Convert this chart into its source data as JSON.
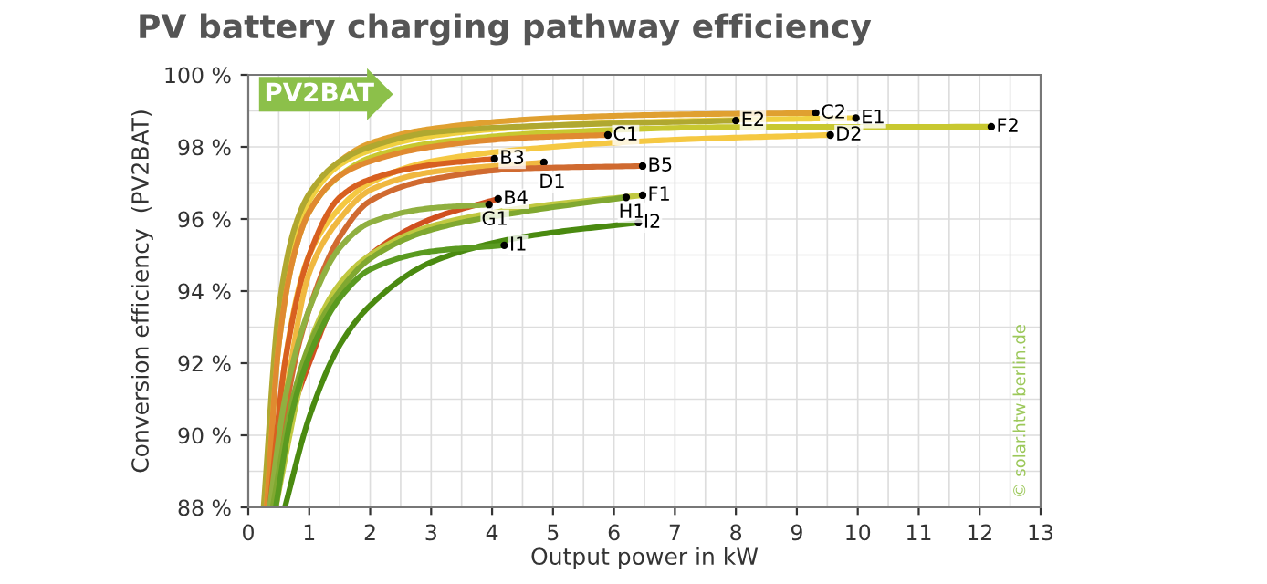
{
  "chart_data": {
    "type": "line",
    "title": "PV battery charging pathway efficiency",
    "xlabel": "Output power in kW",
    "ylabel": "Conversion efficiency  (PV2BAT)",
    "xlim": [
      0,
      13
    ],
    "xticks": [
      0,
      1,
      2,
      3,
      4,
      5,
      6,
      7,
      8,
      9,
      10,
      11,
      12,
      13
    ],
    "ylim": [
      88,
      100
    ],
    "yticks": [
      {
        "value": 88,
        "label": "88 %"
      },
      {
        "value": 90,
        "label": "90 %"
      },
      {
        "value": 92,
        "label": "92 %"
      },
      {
        "value": 94,
        "label": "94 %"
      },
      {
        "value": 96,
        "label": "96 %"
      },
      {
        "value": 98,
        "label": "98 %"
      },
      {
        "value": 100,
        "label": "100 %"
      }
    ],
    "grid": true,
    "legend": false,
    "annotations": [
      "PV2BAT",
      "© solar.htw-berlin.de"
    ],
    "series": [
      {
        "name": "C2",
        "color": "#e0a030",
        "x": [
          0.3,
          0.5,
          0.75,
          1,
          1.5,
          2,
          3,
          5,
          7,
          9.31
        ],
        "values": [
          88,
          93,
          95.5,
          96.6,
          97.6,
          98.1,
          98.5,
          98.8,
          98.9,
          98.94
        ]
      },
      {
        "name": "E1",
        "color": "#f0d040",
        "x": [
          0.3,
          0.5,
          0.75,
          1,
          1.5,
          2,
          3,
          5,
          8,
          9.97
        ],
        "values": [
          88,
          93,
          95.3,
          96.5,
          97.5,
          97.9,
          98.3,
          98.6,
          98.75,
          98.8
        ]
      },
      {
        "name": "E2",
        "color": "#b0a830",
        "x": [
          0.25,
          0.5,
          0.75,
          1,
          1.5,
          2,
          3,
          5,
          8.0
        ],
        "values": [
          88,
          93.5,
          95.7,
          96.7,
          97.6,
          98.0,
          98.4,
          98.6,
          98.73
        ]
      },
      {
        "name": "F2",
        "color": "#c8c830",
        "x": [
          0.3,
          0.5,
          0.75,
          1,
          1.5,
          2,
          3,
          5,
          8,
          12.19
        ],
        "values": [
          88,
          92.5,
          95,
          96.2,
          97.2,
          97.7,
          98.1,
          98.4,
          98.55,
          98.56
        ]
      },
      {
        "name": "D2",
        "color": "#f5c842",
        "x": [
          0.4,
          0.6,
          1,
          1.5,
          2,
          3,
          5,
          7,
          9.55
        ],
        "values": [
          88,
          92,
          95,
          96.3,
          97,
          97.6,
          98.0,
          98.2,
          98.33
        ]
      },
      {
        "name": "C1",
        "color": "#e08a30",
        "x": [
          0.3,
          0.5,
          0.75,
          1,
          1.5,
          2,
          3,
          4.5,
          5.9
        ],
        "values": [
          88,
          92.5,
          95,
          96.2,
          97.2,
          97.6,
          98.0,
          98.25,
          98.33
        ]
      },
      {
        "name": "B3",
        "color": "#d86020",
        "x": [
          0.35,
          0.6,
          1,
          1.5,
          2,
          3,
          4.04
        ],
        "values": [
          88,
          92,
          95,
          96.6,
          97.1,
          97.5,
          97.67
        ]
      },
      {
        "name": "D1",
        "color": "#f0b840",
        "x": [
          0.4,
          0.7,
          1,
          1.5,
          2,
          3,
          4.85
        ],
        "values": [
          88,
          92,
          94.5,
          96,
          96.8,
          97.3,
          97.57
        ]
      },
      {
        "name": "B5",
        "color": "#d06a30",
        "x": [
          0.45,
          0.7,
          1,
          1.5,
          2,
          3,
          4.5,
          6.47
        ],
        "values": [
          88,
          91.5,
          93.5,
          95.5,
          96.5,
          97.1,
          97.4,
          97.47
        ]
      },
      {
        "name": "B4",
        "color": "#d05020",
        "x": [
          0.4,
          0.7,
          1,
          1.5,
          2,
          3,
          4.1
        ],
        "values": [
          88,
          90.5,
          92,
          94,
          95,
          96,
          96.56
        ]
      },
      {
        "name": "G1",
        "color": "#90b040",
        "x": [
          0.35,
          0.6,
          1,
          1.5,
          2,
          3,
          3.95
        ],
        "values": [
          88,
          91,
          93.5,
          95.2,
          95.9,
          96.3,
          96.4
        ]
      },
      {
        "name": "F1",
        "color": "#c0c840",
        "x": [
          0.45,
          0.8,
          1,
          1.5,
          2,
          3,
          4.5,
          6.47
        ],
        "values": [
          88,
          91,
          92.5,
          94.2,
          95,
          95.8,
          96.3,
          96.66
        ]
      },
      {
        "name": "H1",
        "color": "#80a830",
        "x": [
          0.4,
          0.7,
          1,
          1.5,
          2,
          3,
          4.5,
          6.2
        ],
        "values": [
          88,
          90.8,
          92.5,
          94,
          94.9,
          95.7,
          96.2,
          96.6
        ]
      },
      {
        "name": "I2",
        "color": "#4a8a10",
        "x": [
          0.6,
          1,
          1.5,
          2,
          3,
          4.5,
          6.4
        ],
        "values": [
          88,
          90.5,
          92.5,
          93.6,
          94.8,
          95.5,
          95.9
        ]
      },
      {
        "name": "I1",
        "color": "#5a9a20",
        "x": [
          0.45,
          0.7,
          1,
          1.5,
          2,
          3,
          4.2
        ],
        "values": [
          88,
          90.5,
          92.2,
          93.8,
          94.6,
          95.1,
          95.27
        ]
      }
    ]
  }
}
